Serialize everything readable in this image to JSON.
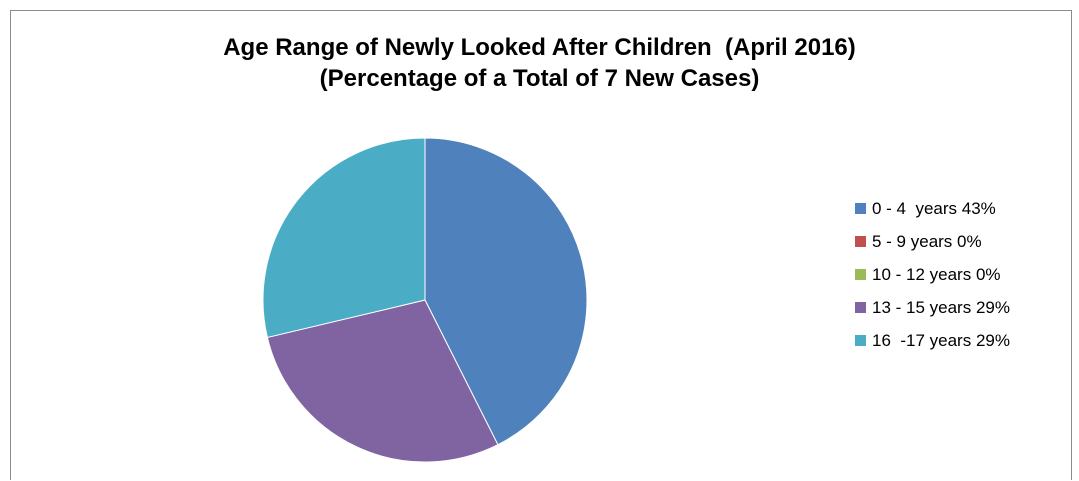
{
  "chart_data": {
    "type": "pie",
    "title_lines": [
      "Age Range of Newly Looked After Children  (April 2016)",
      "(Percentage of a Total of 7 New Cases)"
    ],
    "categories": [
      "0 - 4  years 43%",
      "5 - 9 years 0%",
      "10 - 12 years 0%",
      "13 - 15 years 29%",
      "16  -17 years 29%"
    ],
    "values": [
      43,
      0,
      0,
      29,
      29
    ],
    "colors": [
      "#4f81bd",
      "#c0504d",
      "#9bbb59",
      "#8064a2",
      "#4bacc6"
    ],
    "legend_position": "right"
  }
}
